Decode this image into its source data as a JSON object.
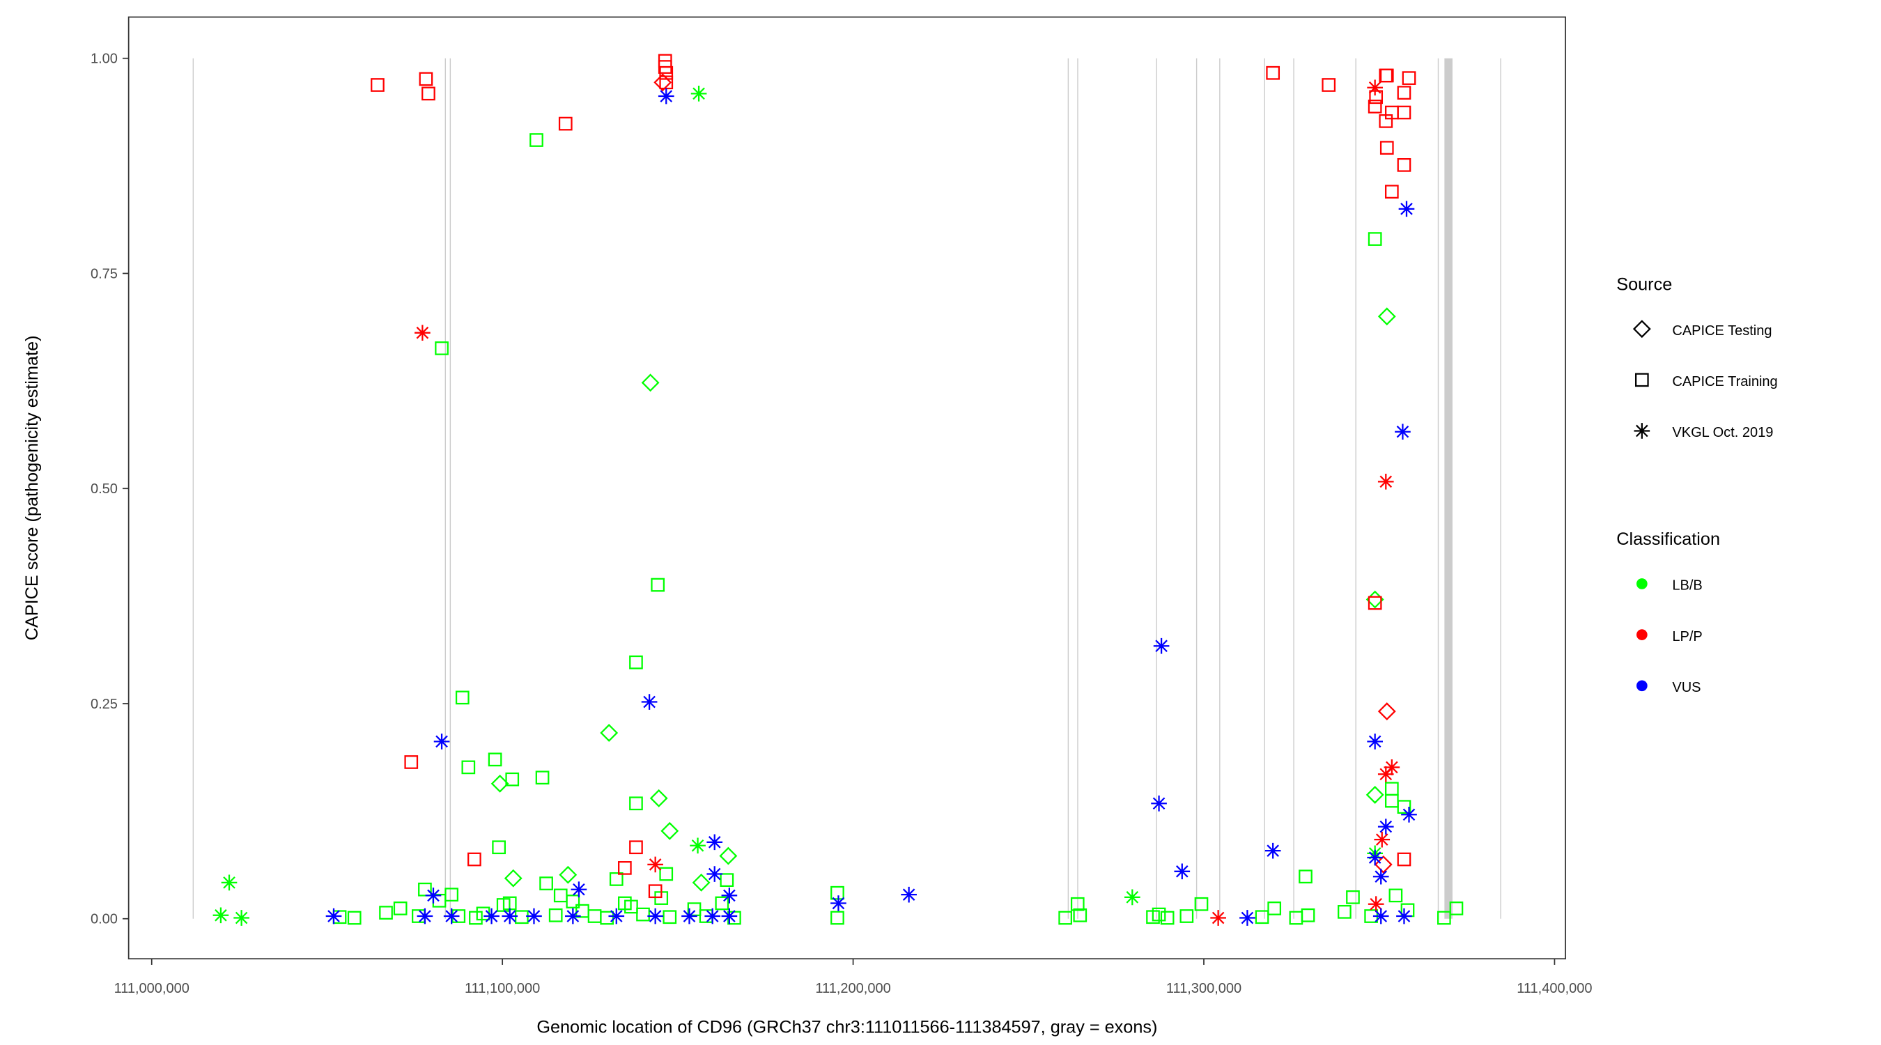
{
  "chart_data": {
    "type": "scatter",
    "xlabel": "Genomic location of CD96 (GRCh37 chr3:111011566-111384597, gray = exons)",
    "ylabel": "CAPICE score (pathogenicity estimate)",
    "xlim": [
      110996000,
      111402000
    ],
    "ylim": [
      -0.047,
      1.047
    ],
    "grid": false,
    "x_ticks": [
      {
        "value": 111000000,
        "label": "111,000,000"
      },
      {
        "value": 111100000,
        "label": "111,100,000"
      },
      {
        "value": 111200000,
        "label": "111,200,000"
      },
      {
        "value": 111300000,
        "label": "111,300,000"
      },
      {
        "value": 111400000,
        "label": "111,400,000"
      }
    ],
    "y_ticks": [
      {
        "value": 0,
        "label": "0.00"
      },
      {
        "value": 0.25,
        "label": "0.25"
      },
      {
        "value": 0.5,
        "label": "0.50"
      },
      {
        "value": 0.75,
        "label": "0.75"
      },
      {
        "value": 1,
        "label": "1.00"
      }
    ],
    "exons": [
      [
        111011700,
        111011900
      ],
      [
        111083600,
        111083800
      ],
      [
        111085000,
        111085200
      ],
      [
        111261200,
        111261400
      ],
      [
        111263900,
        111264100
      ],
      [
        111286400,
        111286600
      ],
      [
        111297800,
        111298000
      ],
      [
        111304400,
        111304600
      ],
      [
        111317200,
        111317400
      ],
      [
        111325500,
        111325700
      ],
      [
        111343200,
        111343400
      ],
      [
        111366700,
        111366900
      ],
      [
        111368600,
        111370900
      ],
      [
        111384500,
        111384700
      ]
    ],
    "legend": {
      "placement": "right",
      "source": {
        "title": "Source",
        "items": [
          {
            "key": "testing",
            "label": "CAPICE Testing",
            "shape": "diamond"
          },
          {
            "key": "training",
            "label": "CAPICE Training",
            "shape": "square"
          },
          {
            "key": "vkgl",
            "label": "VKGL Oct. 2019",
            "shape": "asterisk"
          }
        ]
      },
      "classification": {
        "title": "Classification",
        "items": [
          {
            "key": "LB/B",
            "label": "LB/B",
            "color": "#00ff00"
          },
          {
            "key": "LP/P",
            "label": "LP/P",
            "color": "#ff0000"
          },
          {
            "key": "VUS",
            "label": "VUS",
            "color": "#0000ff"
          }
        ]
      }
    },
    "points_format": [
      "position",
      "score",
      "source",
      "classification"
    ],
    "points": [
      [
        111064400,
        0.969,
        "training",
        "LP/P"
      ],
      [
        111078200,
        0.976,
        "training",
        "LP/P"
      ],
      [
        111078900,
        0.959,
        "training",
        "LP/P"
      ],
      [
        111118000,
        0.924,
        "training",
        "LP/P"
      ],
      [
        111146400,
        0.997,
        "training",
        "LP/P"
      ],
      [
        111146400,
        0.99,
        "training",
        "LP/P"
      ],
      [
        111146700,
        0.983,
        "training",
        "LP/P"
      ],
      [
        111146700,
        0.972,
        "training",
        "LP/P"
      ],
      [
        111319700,
        0.983,
        "training",
        "LP/P"
      ],
      [
        111335600,
        0.969,
        "training",
        "LP/P"
      ],
      [
        111348800,
        0.944,
        "training",
        "LP/P"
      ],
      [
        111349100,
        0.955,
        "training",
        "LP/P"
      ],
      [
        111351900,
        0.98,
        "training",
        "LP/P"
      ],
      [
        111352200,
        0.98,
        "training",
        "LP/P"
      ],
      [
        111358500,
        0.977,
        "training",
        "LP/P"
      ],
      [
        111357100,
        0.96,
        "training",
        "LP/P"
      ],
      [
        111353600,
        0.937,
        "training",
        "LP/P"
      ],
      [
        111357100,
        0.937,
        "training",
        "LP/P"
      ],
      [
        111351900,
        0.927,
        "training",
        "LP/P"
      ],
      [
        111352200,
        0.896,
        "training",
        "LP/P"
      ],
      [
        111357100,
        0.876,
        "training",
        "LP/P"
      ],
      [
        111353600,
        0.845,
        "training",
        "LP/P"
      ],
      [
        111074000,
        0.182,
        "training",
        "LP/P"
      ],
      [
        111092000,
        0.069,
        "training",
        "LP/P"
      ],
      [
        111138100,
        0.083,
        "training",
        "LP/P"
      ],
      [
        111134900,
        0.059,
        "training",
        "LP/P"
      ],
      [
        111143600,
        0.032,
        "training",
        "LP/P"
      ],
      [
        111348800,
        0.367,
        "training",
        "LP/P"
      ],
      [
        111357100,
        0.069,
        "training",
        "LP/P"
      ],
      [
        111348800,
        0.966,
        "vkgl",
        "LP/P"
      ],
      [
        111077200,
        0.681,
        "vkgl",
        "LP/P"
      ],
      [
        111351900,
        0.508,
        "vkgl",
        "LP/P"
      ],
      [
        111353600,
        0.176,
        "vkgl",
        "LP/P"
      ],
      [
        111351900,
        0.168,
        "vkgl",
        "LP/P"
      ],
      [
        111143600,
        0.063,
        "vkgl",
        "LP/P"
      ],
      [
        111304100,
        0.001,
        "vkgl",
        "LP/P"
      ],
      [
        111350800,
        0.092,
        "vkgl",
        "LP/P"
      ],
      [
        111349100,
        0.017,
        "vkgl",
        "LP/P"
      ],
      [
        111145700,
        0.972,
        "testing",
        "LP/P"
      ],
      [
        111352200,
        0.241,
        "testing",
        "LP/P"
      ],
      [
        111351200,
        0.063,
        "testing",
        "LP/P"
      ],
      [
        111109700,
        0.905,
        "training",
        "LB/B"
      ],
      [
        111348800,
        0.79,
        "training",
        "LB/B"
      ],
      [
        111082700,
        0.663,
        "training",
        "LB/B"
      ],
      [
        111144300,
        0.388,
        "training",
        "LB/B"
      ],
      [
        111138100,
        0.298,
        "training",
        "LB/B"
      ],
      [
        111088600,
        0.257,
        "training",
        "LB/B"
      ],
      [
        111090300,
        0.176,
        "training",
        "LB/B"
      ],
      [
        111097900,
        0.185,
        "training",
        "LB/B"
      ],
      [
        111102800,
        0.162,
        "training",
        "LB/B"
      ],
      [
        111111400,
        0.164,
        "training",
        "LB/B"
      ],
      [
        111138100,
        0.134,
        "training",
        "LB/B"
      ],
      [
        111099000,
        0.083,
        "training",
        "LB/B"
      ],
      [
        111195500,
        0.03,
        "training",
        "LB/B"
      ],
      [
        111329000,
        0.049,
        "training",
        "LB/B"
      ],
      [
        111264000,
        0.017,
        "training",
        "LB/B"
      ],
      [
        111146700,
        0.052,
        "training",
        "LB/B"
      ],
      [
        111164000,
        0.045,
        "training",
        "LB/B"
      ],
      [
        111353600,
        0.151,
        "training",
        "LB/B"
      ],
      [
        111353600,
        0.137,
        "training",
        "LB/B"
      ],
      [
        111357100,
        0.13,
        "training",
        "LB/B"
      ],
      [
        111156000,
        0.959,
        "vkgl",
        "LB/B"
      ],
      [
        111022100,
        0.042,
        "vkgl",
        "LB/B"
      ],
      [
        111019700,
        0.004,
        "vkgl",
        "LB/B"
      ],
      [
        111025600,
        0.001,
        "vkgl",
        "LB/B"
      ],
      [
        111155700,
        0.085,
        "vkgl",
        "LB/B"
      ],
      [
        111279600,
        0.025,
        "vkgl",
        "LB/B"
      ],
      [
        111348800,
        0.076,
        "vkgl",
        "LB/B"
      ],
      [
        111142200,
        0.623,
        "testing",
        "LB/B"
      ],
      [
        111352200,
        0.7,
        "testing",
        "LB/B"
      ],
      [
        111348800,
        0.371,
        "testing",
        "LB/B"
      ],
      [
        111130400,
        0.216,
        "testing",
        "LB/B"
      ],
      [
        111099300,
        0.157,
        "testing",
        "LB/B"
      ],
      [
        111144600,
        0.14,
        "testing",
        "LB/B"
      ],
      [
        111147700,
        0.102,
        "testing",
        "LB/B"
      ],
      [
        111164400,
        0.073,
        "testing",
        "LB/B"
      ],
      [
        111103100,
        0.047,
        "testing",
        "LB/B"
      ],
      [
        111118700,
        0.051,
        "testing",
        "LB/B"
      ],
      [
        111156700,
        0.042,
        "testing",
        "LB/B"
      ],
      [
        111348800,
        0.144,
        "testing",
        "LB/B"
      ],
      [
        111053600,
        0.002,
        "training",
        "LB/B"
      ],
      [
        111057800,
        0.001,
        "training",
        "LB/B"
      ],
      [
        111066800,
        0.007,
        "training",
        "LB/B"
      ],
      [
        111070900,
        0.012,
        "training",
        "LB/B"
      ],
      [
        111076100,
        0.003,
        "training",
        "LB/B"
      ],
      [
        111082000,
        0.021,
        "training",
        "LB/B"
      ],
      [
        111087500,
        0.003,
        "training",
        "LB/B"
      ],
      [
        111092400,
        0.001,
        "training",
        "LB/B"
      ],
      [
        111094500,
        0.006,
        "training",
        "LB/B"
      ],
      [
        111100300,
        0.016,
        "training",
        "LB/B"
      ],
      [
        111105500,
        0.002,
        "training",
        "LB/B"
      ],
      [
        111112500,
        0.041,
        "training",
        "LB/B"
      ],
      [
        111115200,
        0.004,
        "training",
        "LB/B"
      ],
      [
        111116600,
        0.027,
        "training",
        "LB/B"
      ],
      [
        111122800,
        0.009,
        "training",
        "LB/B"
      ],
      [
        111126300,
        0.003,
        "training",
        "LB/B"
      ],
      [
        111129800,
        0.001,
        "training",
        "LB/B"
      ],
      [
        111134900,
        0.018,
        "training",
        "LB/B"
      ],
      [
        111136700,
        0.014,
        "training",
        "LB/B"
      ],
      [
        111140100,
        0.005,
        "training",
        "LB/B"
      ],
      [
        111145300,
        0.024,
        "training",
        "LB/B"
      ],
      [
        111147700,
        0.002,
        "training",
        "LB/B"
      ],
      [
        111154700,
        0.011,
        "training",
        "LB/B"
      ],
      [
        111158100,
        0.003,
        "training",
        "LB/B"
      ],
      [
        111162600,
        0.018,
        "training",
        "LB/B"
      ],
      [
        111166100,
        0.001,
        "training",
        "LB/B"
      ],
      [
        111195500,
        0.001,
        "training",
        "LB/B"
      ],
      [
        111260500,
        0.001,
        "training",
        "LB/B"
      ],
      [
        111264700,
        0.004,
        "training",
        "LB/B"
      ],
      [
        111285500,
        0.002,
        "training",
        "LB/B"
      ],
      [
        111287200,
        0.005,
        "training",
        "LB/B"
      ],
      [
        111289600,
        0.001,
        "training",
        "LB/B"
      ],
      [
        111295100,
        0.003,
        "training",
        "LB/B"
      ],
      [
        111299300,
        0.017,
        "training",
        "LB/B"
      ],
      [
        111316600,
        0.002,
        "training",
        "LB/B"
      ],
      [
        111320100,
        0.012,
        "training",
        "LB/B"
      ],
      [
        111326300,
        0.001,
        "training",
        "LB/B"
      ],
      [
        111329700,
        0.004,
        "training",
        "LB/B"
      ],
      [
        111340100,
        0.008,
        "training",
        "LB/B"
      ],
      [
        111342500,
        0.025,
        "training",
        "LB/B"
      ],
      [
        111347700,
        0.003,
        "training",
        "LB/B"
      ],
      [
        111354700,
        0.027,
        "training",
        "LB/B"
      ],
      [
        111358100,
        0.01,
        "training",
        "LB/B"
      ],
      [
        111368500,
        0.001,
        "training",
        "LB/B"
      ],
      [
        111372000,
        0.012,
        "training",
        "LB/B"
      ],
      [
        111077900,
        0.034,
        "training",
        "LB/B"
      ],
      [
        111085500,
        0.028,
        "training",
        "LB/B"
      ],
      [
        111102100,
        0.018,
        "training",
        "LB/B"
      ],
      [
        111120100,
        0.02,
        "training",
        "LB/B"
      ],
      [
        111132500,
        0.046,
        "training",
        "LB/B"
      ],
      [
        111146700,
        0.956,
        "vkgl",
        "VUS"
      ],
      [
        111357800,
        0.825,
        "vkgl",
        "VUS"
      ],
      [
        111356700,
        0.566,
        "vkgl",
        "VUS"
      ],
      [
        111287900,
        0.317,
        "vkgl",
        "VUS"
      ],
      [
        111141900,
        0.252,
        "vkgl",
        "VUS"
      ],
      [
        111082700,
        0.206,
        "vkgl",
        "VUS"
      ],
      [
        111287200,
        0.134,
        "vkgl",
        "VUS"
      ],
      [
        111348800,
        0.206,
        "vkgl",
        "VUS"
      ],
      [
        111358500,
        0.121,
        "vkgl",
        "VUS"
      ],
      [
        111160500,
        0.089,
        "vkgl",
        "VUS"
      ],
      [
        111351900,
        0.107,
        "vkgl",
        "VUS"
      ],
      [
        111293800,
        0.055,
        "vkgl",
        "VUS"
      ],
      [
        111319700,
        0.079,
        "vkgl",
        "VUS"
      ],
      [
        111195800,
        0.018,
        "vkgl",
        "VUS"
      ],
      [
        111215900,
        0.028,
        "vkgl",
        "VUS"
      ],
      [
        111121800,
        0.034,
        "vkgl",
        "VUS"
      ],
      [
        111080300,
        0.027,
        "vkgl",
        "VUS"
      ],
      [
        111160500,
        0.052,
        "vkgl",
        "VUS"
      ],
      [
        111164700,
        0.027,
        "vkgl",
        "VUS"
      ],
      [
        111348800,
        0.071,
        "vkgl",
        "VUS"
      ],
      [
        111350500,
        0.049,
        "vkgl",
        "VUS"
      ],
      [
        111051900,
        0.003,
        "vkgl",
        "VUS"
      ],
      [
        111077900,
        0.003,
        "vkgl",
        "VUS"
      ],
      [
        111085500,
        0.003,
        "vkgl",
        "VUS"
      ],
      [
        111096900,
        0.003,
        "vkgl",
        "VUS"
      ],
      [
        111102100,
        0.003,
        "vkgl",
        "VUS"
      ],
      [
        111109000,
        0.003,
        "vkgl",
        "VUS"
      ],
      [
        111120100,
        0.003,
        "vkgl",
        "VUS"
      ],
      [
        111132500,
        0.003,
        "vkgl",
        "VUS"
      ],
      [
        111143600,
        0.003,
        "vkgl",
        "VUS"
      ],
      [
        111153300,
        0.003,
        "vkgl",
        "VUS"
      ],
      [
        111159900,
        0.003,
        "vkgl",
        "VUS"
      ],
      [
        111164700,
        0.003,
        "vkgl",
        "VUS"
      ],
      [
        111312400,
        0.001,
        "vkgl",
        "VUS"
      ],
      [
        111350500,
        0.003,
        "vkgl",
        "VUS"
      ],
      [
        111357100,
        0.003,
        "vkgl",
        "VUS"
      ]
    ]
  }
}
